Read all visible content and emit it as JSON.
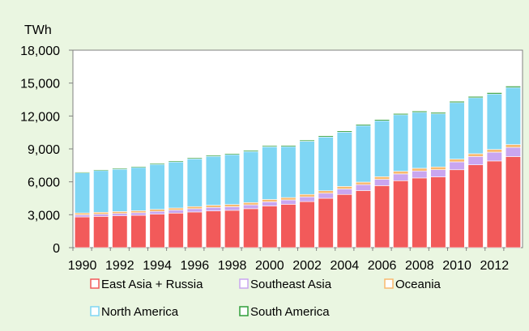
{
  "chart_data": {
    "type": "bar",
    "stacked": true,
    "y_unit_label": "TWh",
    "xlabel": "",
    "ylabel": "",
    "title": "",
    "ylim": [
      0,
      18000
    ],
    "yticks": [
      0,
      3000,
      6000,
      9000,
      12000,
      15000,
      18000
    ],
    "ytick_labels": [
      "0",
      "3,000",
      "6,000",
      "9,000",
      "12,000",
      "15,000",
      "18,000"
    ],
    "grid": false,
    "legend_position": "bottom",
    "categories": [
      "1990",
      "1991",
      "1992",
      "1993",
      "1994",
      "1995",
      "1996",
      "1997",
      "1998",
      "1999",
      "2000",
      "2001",
      "2002",
      "2003",
      "2004",
      "2005",
      "2006",
      "2007",
      "2008",
      "2009",
      "2010",
      "2011",
      "2012",
      "2013"
    ],
    "xtick_labels": [
      "1990",
      "1992",
      "1994",
      "1996",
      "1998",
      "2000",
      "2002",
      "2004",
      "2006",
      "2008",
      "2010",
      "2012"
    ],
    "series": [
      {
        "name": "East Asia + Russia",
        "color": "#f25a5a",
        "values": [
          2800,
          2850,
          2900,
          2950,
          3050,
          3150,
          3250,
          3350,
          3400,
          3550,
          3800,
          3950,
          4200,
          4500,
          4850,
          5200,
          5650,
          6100,
          6350,
          6450,
          7100,
          7550,
          7900,
          8300
        ]
      },
      {
        "name": "Southeast Asia",
        "color": "#c9a6f0",
        "values": [
          190,
          200,
          215,
          235,
          255,
          275,
          300,
          320,
          330,
          350,
          380,
          400,
          430,
          460,
          500,
          540,
          580,
          620,
          640,
          660,
          720,
          760,
          800,
          840
        ]
      },
      {
        "name": "Oceania",
        "color": "#f9b96e",
        "values": [
          170,
          175,
          178,
          180,
          185,
          190,
          195,
          200,
          205,
          210,
          215,
          218,
          222,
          226,
          230,
          234,
          238,
          242,
          246,
          248,
          250,
          252,
          255,
          258
        ]
      },
      {
        "name": "North America",
        "color": "#7fd6f4",
        "values": [
          3650,
          3800,
          3850,
          3950,
          4100,
          4200,
          4350,
          4450,
          4550,
          4650,
          4800,
          4650,
          4850,
          4900,
          4950,
          5150,
          5100,
          5150,
          5100,
          4850,
          5150,
          5100,
          5050,
          5200
        ]
      },
      {
        "name": "South America",
        "color": "#2f9e3a",
        "values": [
          80,
          82,
          84,
          86,
          88,
          90,
          92,
          94,
          96,
          98,
          100,
          102,
          104,
          106,
          108,
          110,
          112,
          114,
          116,
          118,
          120,
          122,
          124,
          126
        ]
      }
    ]
  }
}
